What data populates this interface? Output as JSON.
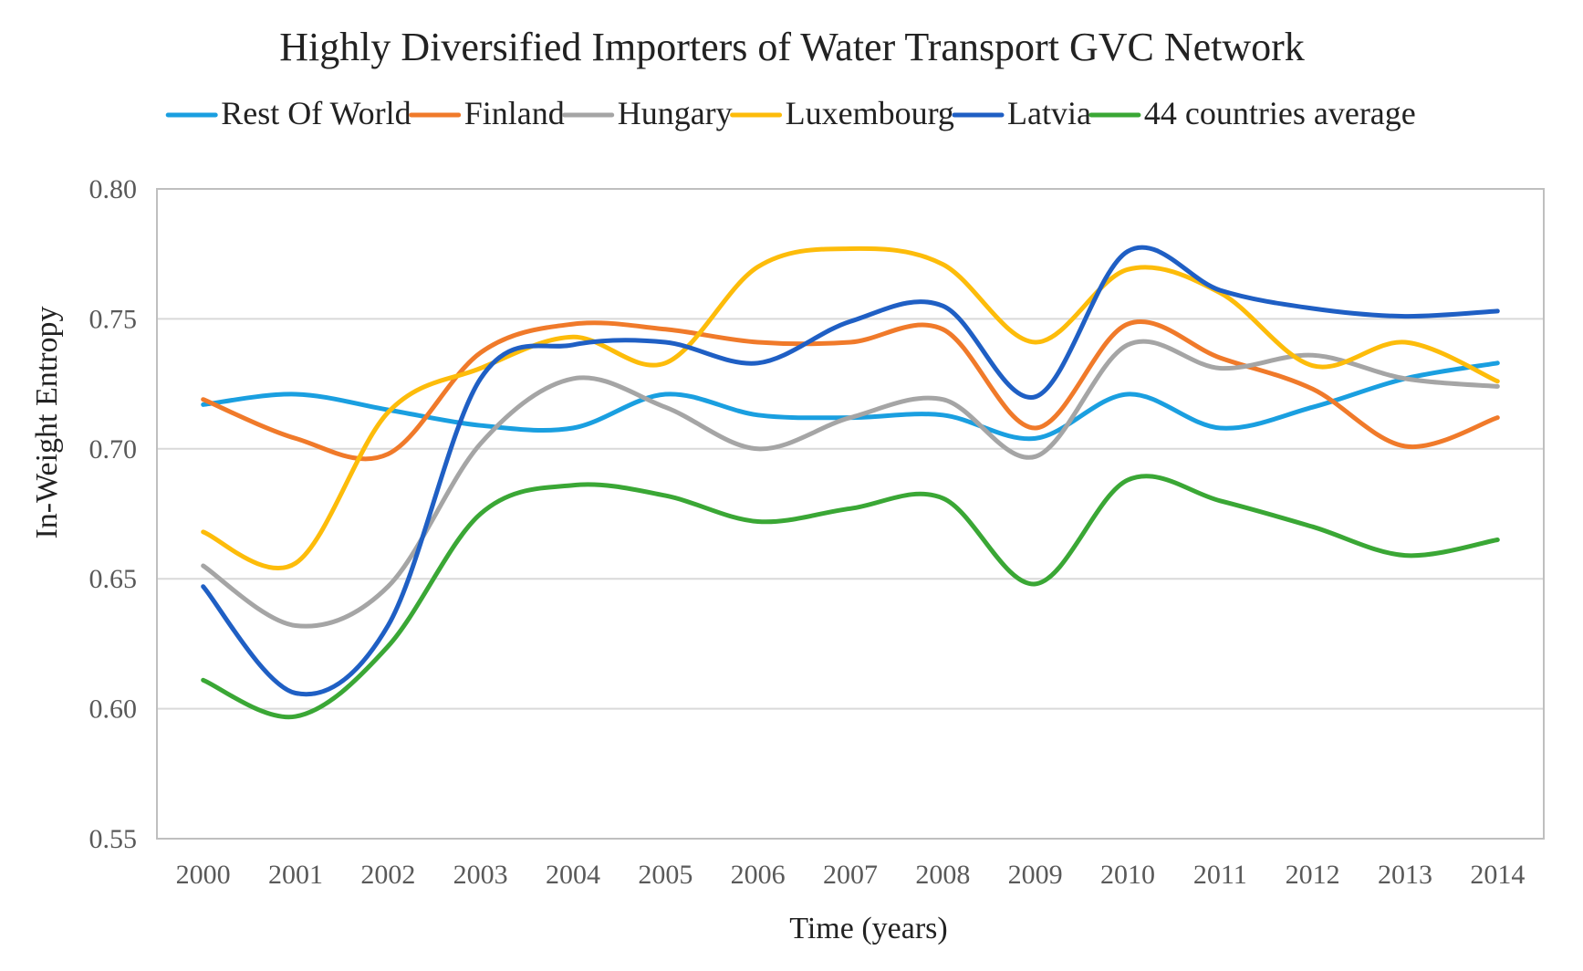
{
  "chart_data": {
    "type": "line",
    "title": "Highly Diversified Importers of Water Transport GVC Network",
    "xlabel": "Time (years)",
    "ylabel": "In-Weight Entropy",
    "ylim": [
      0.55,
      0.8
    ],
    "yticks": [
      "0.55",
      "0.60",
      "0.65",
      "0.70",
      "0.75",
      "0.80"
    ],
    "grid": true,
    "legend_position": "top",
    "x": [
      "2000",
      "2001",
      "2002",
      "2003",
      "2004",
      "2005",
      "2006",
      "2007",
      "2008",
      "2009",
      "2010",
      "2011",
      "2012",
      "2013",
      "2014"
    ],
    "series": [
      {
        "name": "Rest Of World",
        "color": "#1a9fe0",
        "values": [
          0.717,
          0.721,
          0.715,
          0.709,
          0.708,
          0.721,
          0.713,
          0.712,
          0.713,
          0.704,
          0.721,
          0.708,
          0.716,
          0.727,
          0.733
        ]
      },
      {
        "name": "Finland",
        "color": "#f07a2a",
        "values": [
          0.719,
          0.704,
          0.698,
          0.737,
          0.748,
          0.746,
          0.741,
          0.741,
          0.746,
          0.708,
          0.748,
          0.735,
          0.723,
          0.701,
          0.712
        ]
      },
      {
        "name": "Hungary",
        "color": "#a5a5a5",
        "values": [
          0.655,
          0.632,
          0.647,
          0.702,
          0.727,
          0.716,
          0.7,
          0.712,
          0.719,
          0.697,
          0.74,
          0.731,
          0.736,
          0.727,
          0.724
        ]
      },
      {
        "name": "Luxembourg",
        "color": "#fdbc0a",
        "values": [
          0.668,
          0.656,
          0.714,
          0.731,
          0.743,
          0.733,
          0.77,
          0.777,
          0.771,
          0.741,
          0.769,
          0.76,
          0.732,
          0.741,
          0.726
        ]
      },
      {
        "name": "Latvia",
        "color": "#1f5fc4",
        "values": [
          0.647,
          0.606,
          0.632,
          0.727,
          0.74,
          0.741,
          0.733,
          0.749,
          0.755,
          0.72,
          0.776,
          0.761,
          0.754,
          0.751,
          0.753
        ]
      },
      {
        "name": "44 countries average",
        "color": "#3aa735",
        "values": [
          0.611,
          0.597,
          0.624,
          0.675,
          0.686,
          0.682,
          0.672,
          0.677,
          0.681,
          0.648,
          0.688,
          0.68,
          0.67,
          0.659,
          0.665
        ]
      }
    ]
  }
}
